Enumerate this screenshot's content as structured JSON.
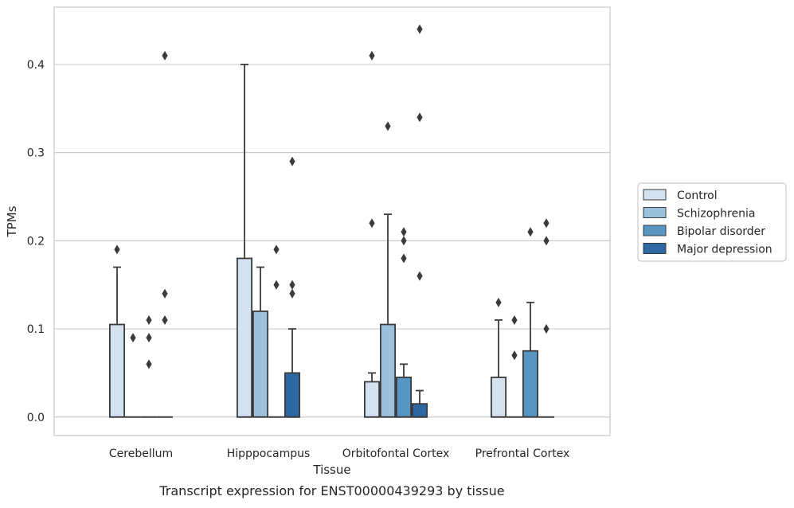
{
  "chart_data": {
    "type": "box",
    "categories": [
      "Cerebellum",
      "Hipppocampus",
      "Orbitofontal Cortex",
      "Prefrontal Cortex"
    ],
    "xlabel": "Tissue",
    "ylabel": "TPMs",
    "caption": "Transcript expression for ENST00000439293 by tissue",
    "yticks": [
      "0.0",
      "0.1",
      "0.2",
      "0.3",
      "0.4"
    ],
    "ylim": [
      -0.021,
      0.465
    ],
    "grid": "horizontal",
    "legend_position": "right",
    "series": [
      {
        "name": "Control",
        "color": "#d4e1ef",
        "boxes": [
          {
            "q1": 0,
            "q3": 0.105,
            "median": 0,
            "whisker_low": 0,
            "whisker_high": 0.17,
            "outliers": [
              0.19
            ]
          },
          {
            "q1": 0,
            "q3": 0.18,
            "median": 0,
            "whisker_low": 0,
            "whisker_high": 0.4,
            "outliers": []
          },
          {
            "q1": 0,
            "q3": 0.04,
            "median": 0,
            "whisker_low": 0,
            "whisker_high": 0.05,
            "outliers": [
              0.22,
              0.41
            ]
          },
          {
            "q1": 0,
            "q3": 0.045,
            "median": 0,
            "whisker_low": 0,
            "whisker_high": 0.11,
            "outliers": [
              0.13
            ]
          }
        ]
      },
      {
        "name": "Schizophrenia",
        "color": "#9cc1dc",
        "boxes": [
          {
            "q1": 0,
            "q3": 0,
            "median": 0,
            "whisker_low": 0,
            "whisker_high": 0,
            "outliers": [
              0.09
            ]
          },
          {
            "q1": 0,
            "q3": 0.12,
            "median": 0,
            "whisker_low": 0,
            "whisker_high": 0.17,
            "outliers": []
          },
          {
            "q1": 0,
            "q3": 0.105,
            "median": 0,
            "whisker_low": 0,
            "whisker_high": 0.23,
            "outliers": [
              0.33
            ]
          },
          {
            "q1": 0,
            "q3": 0,
            "median": 0,
            "whisker_low": 0,
            "whisker_high": 0,
            "outliers": [
              0.07,
              0.11
            ]
          }
        ]
      },
      {
        "name": "Bipolar disorder",
        "color": "#5796c2",
        "boxes": [
          {
            "q1": 0,
            "q3": 0,
            "median": 0,
            "whisker_low": 0,
            "whisker_high": 0,
            "outliers": [
              0.06,
              0.09,
              0.11
            ]
          },
          {
            "q1": 0,
            "q3": 0,
            "median": 0,
            "whisker_low": 0,
            "whisker_high": 0,
            "outliers": [
              0.15,
              0.19
            ]
          },
          {
            "q1": 0,
            "q3": 0.045,
            "median": 0,
            "whisker_low": 0,
            "whisker_high": 0.06,
            "outliers": [
              0.18,
              0.2,
              0.21
            ]
          },
          {
            "q1": 0,
            "q3": 0.075,
            "median": 0,
            "whisker_low": 0,
            "whisker_high": 0.13,
            "outliers": [
              0.21
            ]
          }
        ]
      },
      {
        "name": "Major depression",
        "color": "#2e68a3",
        "boxes": [
          {
            "q1": 0,
            "q3": 0,
            "median": 0,
            "whisker_low": 0,
            "whisker_high": 0,
            "outliers": [
              0.11,
              0.14,
              0.41
            ]
          },
          {
            "q1": 0,
            "q3": 0.05,
            "median": 0,
            "whisker_low": 0,
            "whisker_high": 0.1,
            "outliers": [
              0.14,
              0.15,
              0.29
            ]
          },
          {
            "q1": 0,
            "q3": 0.015,
            "median": 0,
            "whisker_low": 0,
            "whisker_high": 0.03,
            "outliers": [
              0.16,
              0.34,
              0.44
            ]
          },
          {
            "q1": 0,
            "q3": 0,
            "median": 0,
            "whisker_low": 0,
            "whisker_high": 0,
            "outliers": [
              0.1,
              0.2,
              0.22
            ]
          }
        ]
      }
    ]
  }
}
